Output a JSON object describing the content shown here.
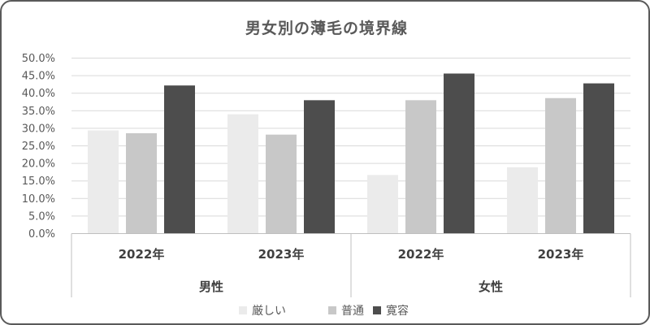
{
  "chart_data": {
    "type": "bar",
    "title": "男女別の薄毛の境界線",
    "groups": [
      {
        "label": "男性",
        "categories": [
          "2022年",
          "2023年"
        ]
      },
      {
        "label": "女性",
        "categories": [
          "2022年",
          "2023年"
        ]
      }
    ],
    "categories": [
      "2022年",
      "2023年",
      "2022年",
      "2023年"
    ],
    "series": [
      {
        "name": "厳しい",
        "color": "#ebebeb",
        "values": [
          29.4,
          34.0,
          16.7,
          18.9
        ]
      },
      {
        "name": "普通",
        "color": "#c8c8c8",
        "values": [
          28.6,
          28.2,
          38.0,
          38.6
        ]
      },
      {
        "name": "寛容",
        "color": "#4d4d4d",
        "values": [
          42.2,
          38.0,
          45.6,
          42.8
        ]
      }
    ],
    "ylim": [
      0,
      50
    ],
    "yticks": [
      "0.0%",
      "5.0%",
      "10.0%",
      "15.0%",
      "20.0%",
      "25.0%",
      "30.0%",
      "35.0%",
      "40.0%",
      "45.0%",
      "50.0%"
    ],
    "grid": true,
    "legend_position": "bottom"
  }
}
